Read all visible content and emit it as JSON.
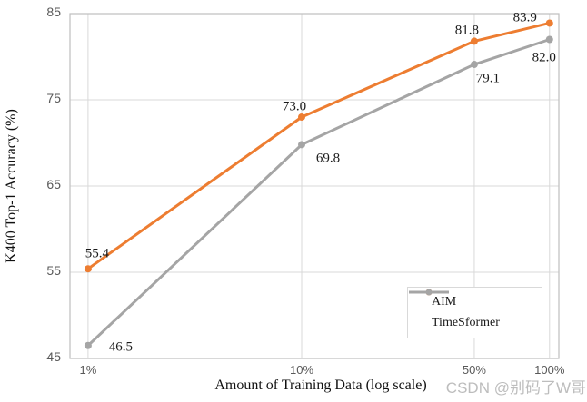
{
  "watermark": {
    "text": "CSDN @别码了W哥",
    "color": "#bdbdbd"
  },
  "chart_data": {
    "type": "line",
    "title": "",
    "xlabel": "Amount of Training Data (log scale)",
    "ylabel": "K400 Top-1 Accuracy (%)",
    "x_tick_labels": [
      "1%",
      "10%",
      "50%",
      "100%"
    ],
    "x_positions": [
      0.037,
      0.474,
      0.827,
      0.981
    ],
    "y_ticks": [
      45,
      55,
      65,
      75,
      85
    ],
    "ylim": [
      45,
      85
    ],
    "grid": true,
    "legend_position": "lower right",
    "colors": {
      "grid": "#d9d9d9",
      "plot_border": "#bfbfbf",
      "tick_text": "#595959",
      "label_text": "#1a1a1a",
      "background": "#ffffff"
    },
    "series": [
      {
        "name": "AIM",
        "color": "#ED7D31",
        "values": [
          55.4,
          73.0,
          81.8,
          83.9
        ],
        "label_offsets": [
          [
            10,
            -16
          ],
          [
            -8,
            -11
          ],
          [
            -8,
            -11
          ],
          [
            -27,
            -5
          ]
        ]
      },
      {
        "name": "TimeSformer",
        "color": "#A5A5A5",
        "values": [
          46.5,
          69.8,
          79.1,
          82.0
        ],
        "label_offsets": [
          [
            36,
            2
          ],
          [
            29,
            16
          ],
          [
            15,
            16
          ],
          [
            -6,
            20
          ]
        ]
      }
    ]
  }
}
